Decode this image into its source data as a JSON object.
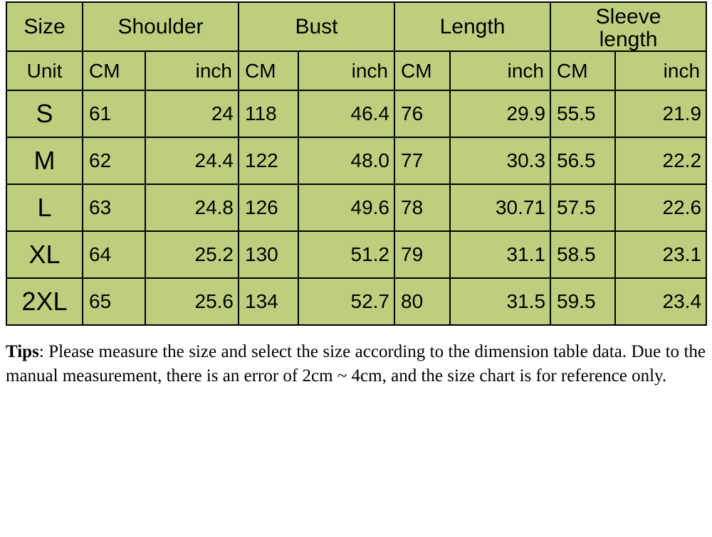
{
  "table": {
    "background_color": "#bdcf7f",
    "border_color": "#000000",
    "size_header": "Size",
    "unit_header": "Unit",
    "measurements": [
      "Shoulder",
      "Bust",
      "Length",
      "Sleeve length"
    ],
    "unit_labels": {
      "cm": "CM",
      "inch": "inch"
    },
    "col_widths": {
      "size": 107,
      "pair": 219
    },
    "header_fontsize": 30,
    "unit_fontsize": 28,
    "data_fontsize": 28,
    "size_cell_fontsize": 36,
    "header_row_height": 68,
    "unit_row_height": 55,
    "data_row_height": 66,
    "rows": [
      {
        "size": "S",
        "values": [
          [
            "61",
            "24"
          ],
          [
            "118",
            "46.4"
          ],
          [
            "76",
            "29.9"
          ],
          [
            "55.5",
            "21.9"
          ]
        ]
      },
      {
        "size": "M",
        "values": [
          [
            "62",
            "24.4"
          ],
          [
            "122",
            "48.0"
          ],
          [
            "77",
            "30.3"
          ],
          [
            "56.5",
            "22.2"
          ]
        ]
      },
      {
        "size": "L",
        "values": [
          [
            "63",
            "24.8"
          ],
          [
            "126",
            "49.6"
          ],
          [
            "78",
            "30.71"
          ],
          [
            "57.5",
            "22.6"
          ]
        ]
      },
      {
        "size": "XL",
        "values": [
          [
            "64",
            "25.2"
          ],
          [
            "130",
            "51.2"
          ],
          [
            "79",
            "31.1"
          ],
          [
            "58.5",
            "23.1"
          ]
        ]
      },
      {
        "size": "2XL",
        "values": [
          [
            "65",
            "25.6"
          ],
          [
            "134",
            "52.7"
          ],
          [
            "80",
            "31.5"
          ],
          [
            "59.5",
            "23.4"
          ]
        ]
      }
    ]
  },
  "tips": {
    "label": "Tips",
    "text": ": Please measure the size and select the size according to the dimension table data. Due to the manual measurement, there is an error of 2cm ~ 4cm, and the size chart is for reference only.",
    "fontsize": 25,
    "font_family": "Times New Roman"
  }
}
